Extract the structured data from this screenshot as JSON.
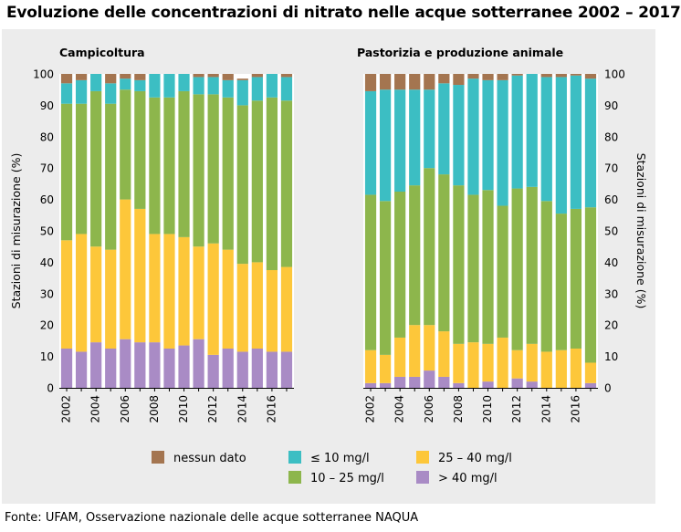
{
  "title": "Evoluzione delle concentrazioni di nitrato nelle acque sotterranee 2002 – 2017",
  "source": "Fonte: UFAM, Osservazione nazionale delle acque sotterranee NAQUA",
  "colors": {
    "nessun dato": "#a47550",
    "le10": "#3cbec3",
    "10-25": "#8db64c",
    "25-40": "#fdc73a",
    "gt40": "#a98bc5"
  },
  "chart_data": [
    {
      "type": "bar",
      "stacked": true,
      "title": "Campicoltura",
      "ylabel": "Stazioni di misurazione (%)",
      "ylim": [
        0,
        100
      ],
      "yticks": [
        0,
        10,
        20,
        30,
        40,
        50,
        60,
        70,
        80,
        90,
        100
      ],
      "categories": [
        "2002",
        "2003",
        "2004",
        "2005",
        "2006",
        "2007",
        "2008",
        "2009",
        "2010",
        "2011",
        "2012",
        "2013",
        "2014",
        "2015",
        "2016",
        "2017"
      ],
      "xtick_labels": [
        "2002",
        "2004",
        "2006",
        "2008",
        "2010",
        "2012",
        "2014",
        "2016"
      ],
      "series": [
        {
          "name": "> 40 mg/l",
          "key": "gt40",
          "values": [
            12.5,
            11.5,
            14.5,
            12.5,
            15.5,
            14.5,
            14.5,
            12.5,
            13.5,
            15.5,
            10.5,
            12.5,
            11.5,
            12.5,
            11.5,
            11.5
          ]
        },
        {
          "name": "25 – 40 mg/l",
          "key": "25-40",
          "values": [
            34.5,
            37.5,
            30.5,
            31.5,
            44.5,
            42.5,
            34.5,
            36.5,
            34.5,
            29.5,
            35.5,
            31.5,
            28.0,
            27.5,
            26.0,
            27.0
          ]
        },
        {
          "name": "10 – 25 mg/l",
          "key": "10-25",
          "values": [
            43.5,
            41.5,
            49.5,
            46.5,
            35.0,
            37.5,
            43.5,
            43.5,
            46.5,
            48.5,
            47.5,
            48.5,
            50.5,
            51.5,
            55.0,
            53.0
          ]
        },
        {
          "name": "≤ 10 mg/l",
          "key": "le10",
          "values": [
            6.5,
            7.5,
            5.5,
            6.5,
            3.5,
            3.5,
            7.5,
            7.5,
            5.5,
            5.5,
            5.5,
            5.5,
            8.0,
            7.5,
            7.5,
            7.5
          ]
        },
        {
          "name": "nessun dato",
          "key": "nessun dato",
          "values": [
            3.0,
            2.0,
            0,
            3.0,
            1.5,
            2.0,
            0,
            0,
            0,
            1.0,
            1.0,
            2.0,
            0.5,
            1.0,
            0,
            1.0
          ]
        }
      ]
    },
    {
      "type": "bar",
      "stacked": true,
      "title": "Pastorizia e produzione animale",
      "ylabel": "Stazioni di misurazione (%)",
      "ylim": [
        0,
        100
      ],
      "yticks": [
        0,
        10,
        20,
        30,
        40,
        50,
        60,
        70,
        80,
        90,
        100
      ],
      "categories": [
        "2002",
        "2003",
        "2004",
        "2005",
        "2006",
        "2007",
        "2008",
        "2009",
        "2010",
        "2011",
        "2012",
        "2013",
        "2014",
        "2015",
        "2016",
        "2017"
      ],
      "xtick_labels": [
        "2002",
        "2004",
        "2006",
        "2008",
        "2010",
        "2012",
        "2014",
        "2016"
      ],
      "series": [
        {
          "name": "> 40 mg/l",
          "key": "gt40",
          "values": [
            1.5,
            1.5,
            3.5,
            3.5,
            5.5,
            3.5,
            1.5,
            0,
            2.0,
            0,
            3.0,
            2.0,
            0,
            0,
            0,
            1.5
          ]
        },
        {
          "name": "25 – 40 mg/l",
          "key": "25-40",
          "values": [
            10.5,
            9.0,
            12.5,
            16.5,
            14.5,
            14.5,
            12.5,
            14.5,
            12.0,
            16.0,
            9.0,
            12.0,
            11.5,
            12.0,
            12.5,
            6.5
          ]
        },
        {
          "name": "10 – 25 mg/l",
          "key": "10-25",
          "values": [
            49.5,
            49.0,
            46.5,
            44.5,
            50.0,
            50.0,
            50.5,
            47.0,
            49.0,
            42.0,
            51.5,
            50.0,
            48.0,
            43.5,
            44.5,
            49.5
          ]
        },
        {
          "name": "≤ 10 mg/l",
          "key": "le10",
          "values": [
            33.0,
            35.5,
            32.5,
            30.5,
            25.0,
            29.0,
            32.0,
            37.0,
            35.0,
            40.0,
            36.0,
            36.0,
            39.5,
            43.5,
            42.5,
            41.0
          ]
        },
        {
          "name": "nessun dato",
          "key": "nessun dato",
          "values": [
            5.5,
            5.0,
            5.0,
            5.0,
            5.0,
            3.0,
            3.5,
            1.5,
            2.0,
            2.0,
            0.5,
            0,
            1.0,
            1.0,
            0.5,
            1.5
          ]
        }
      ]
    }
  ],
  "legend": [
    {
      "label": "nessun dato",
      "key": "nessun dato"
    },
    {
      "label": "≤ 10 mg/l",
      "key": "le10"
    },
    {
      "label": "25 – 40 mg/l",
      "key": "25-40"
    },
    {
      "label": "10 – 25 mg/l",
      "key": "10-25"
    },
    {
      "label": "> 40 mg/l",
      "key": "gt40"
    }
  ]
}
